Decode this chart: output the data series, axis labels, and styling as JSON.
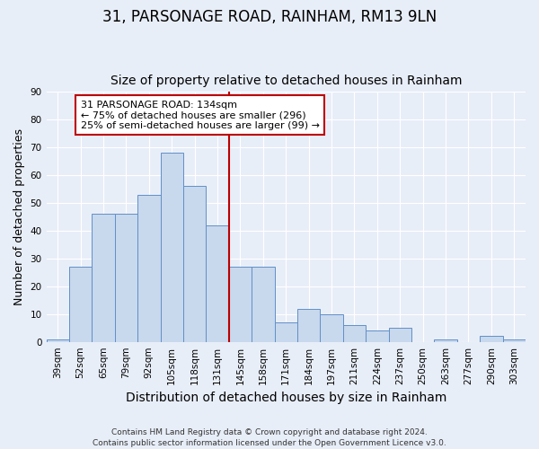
{
  "title": "31, PARSONAGE ROAD, RAINHAM, RM13 9LN",
  "subtitle": "Size of property relative to detached houses in Rainham",
  "xlabel": "Distribution of detached houses by size in Rainham",
  "ylabel": "Number of detached properties",
  "categories": [
    "39sqm",
    "52sqm",
    "65sqm",
    "79sqm",
    "92sqm",
    "105sqm",
    "118sqm",
    "131sqm",
    "145sqm",
    "158sqm",
    "171sqm",
    "184sqm",
    "197sqm",
    "211sqm",
    "224sqm",
    "237sqm",
    "250sqm",
    "263sqm",
    "277sqm",
    "290sqm",
    "303sqm"
  ],
  "values": [
    1,
    27,
    46,
    46,
    53,
    68,
    56,
    42,
    27,
    27,
    7,
    12,
    10,
    6,
    4,
    5,
    0,
    1,
    0,
    2,
    1
  ],
  "bar_color": "#c8d8ed",
  "bar_edge_color": "#6090c8",
  "vline_index": 7,
  "vline_color": "#bb0000",
  "annotation_text": "31 PARSONAGE ROAD: 134sqm\n← 75% of detached houses are smaller (296)\n25% of semi-detached houses are larger (99) →",
  "annotation_box_color": "white",
  "annotation_box_edge": "#bb0000",
  "ylim": [
    0,
    90
  ],
  "yticks": [
    0,
    10,
    20,
    30,
    40,
    50,
    60,
    70,
    80,
    90
  ],
  "plot_bg_color": "#e8eef8",
  "fig_bg_color": "#e8eef8",
  "footer": "Contains HM Land Registry data © Crown copyright and database right 2024.\nContains public sector information licensed under the Open Government Licence v3.0.",
  "title_fontsize": 12,
  "subtitle_fontsize": 10,
  "xlabel_fontsize": 10,
  "ylabel_fontsize": 9,
  "tick_fontsize": 7.5,
  "footer_fontsize": 6.5,
  "ann_fontsize": 8
}
